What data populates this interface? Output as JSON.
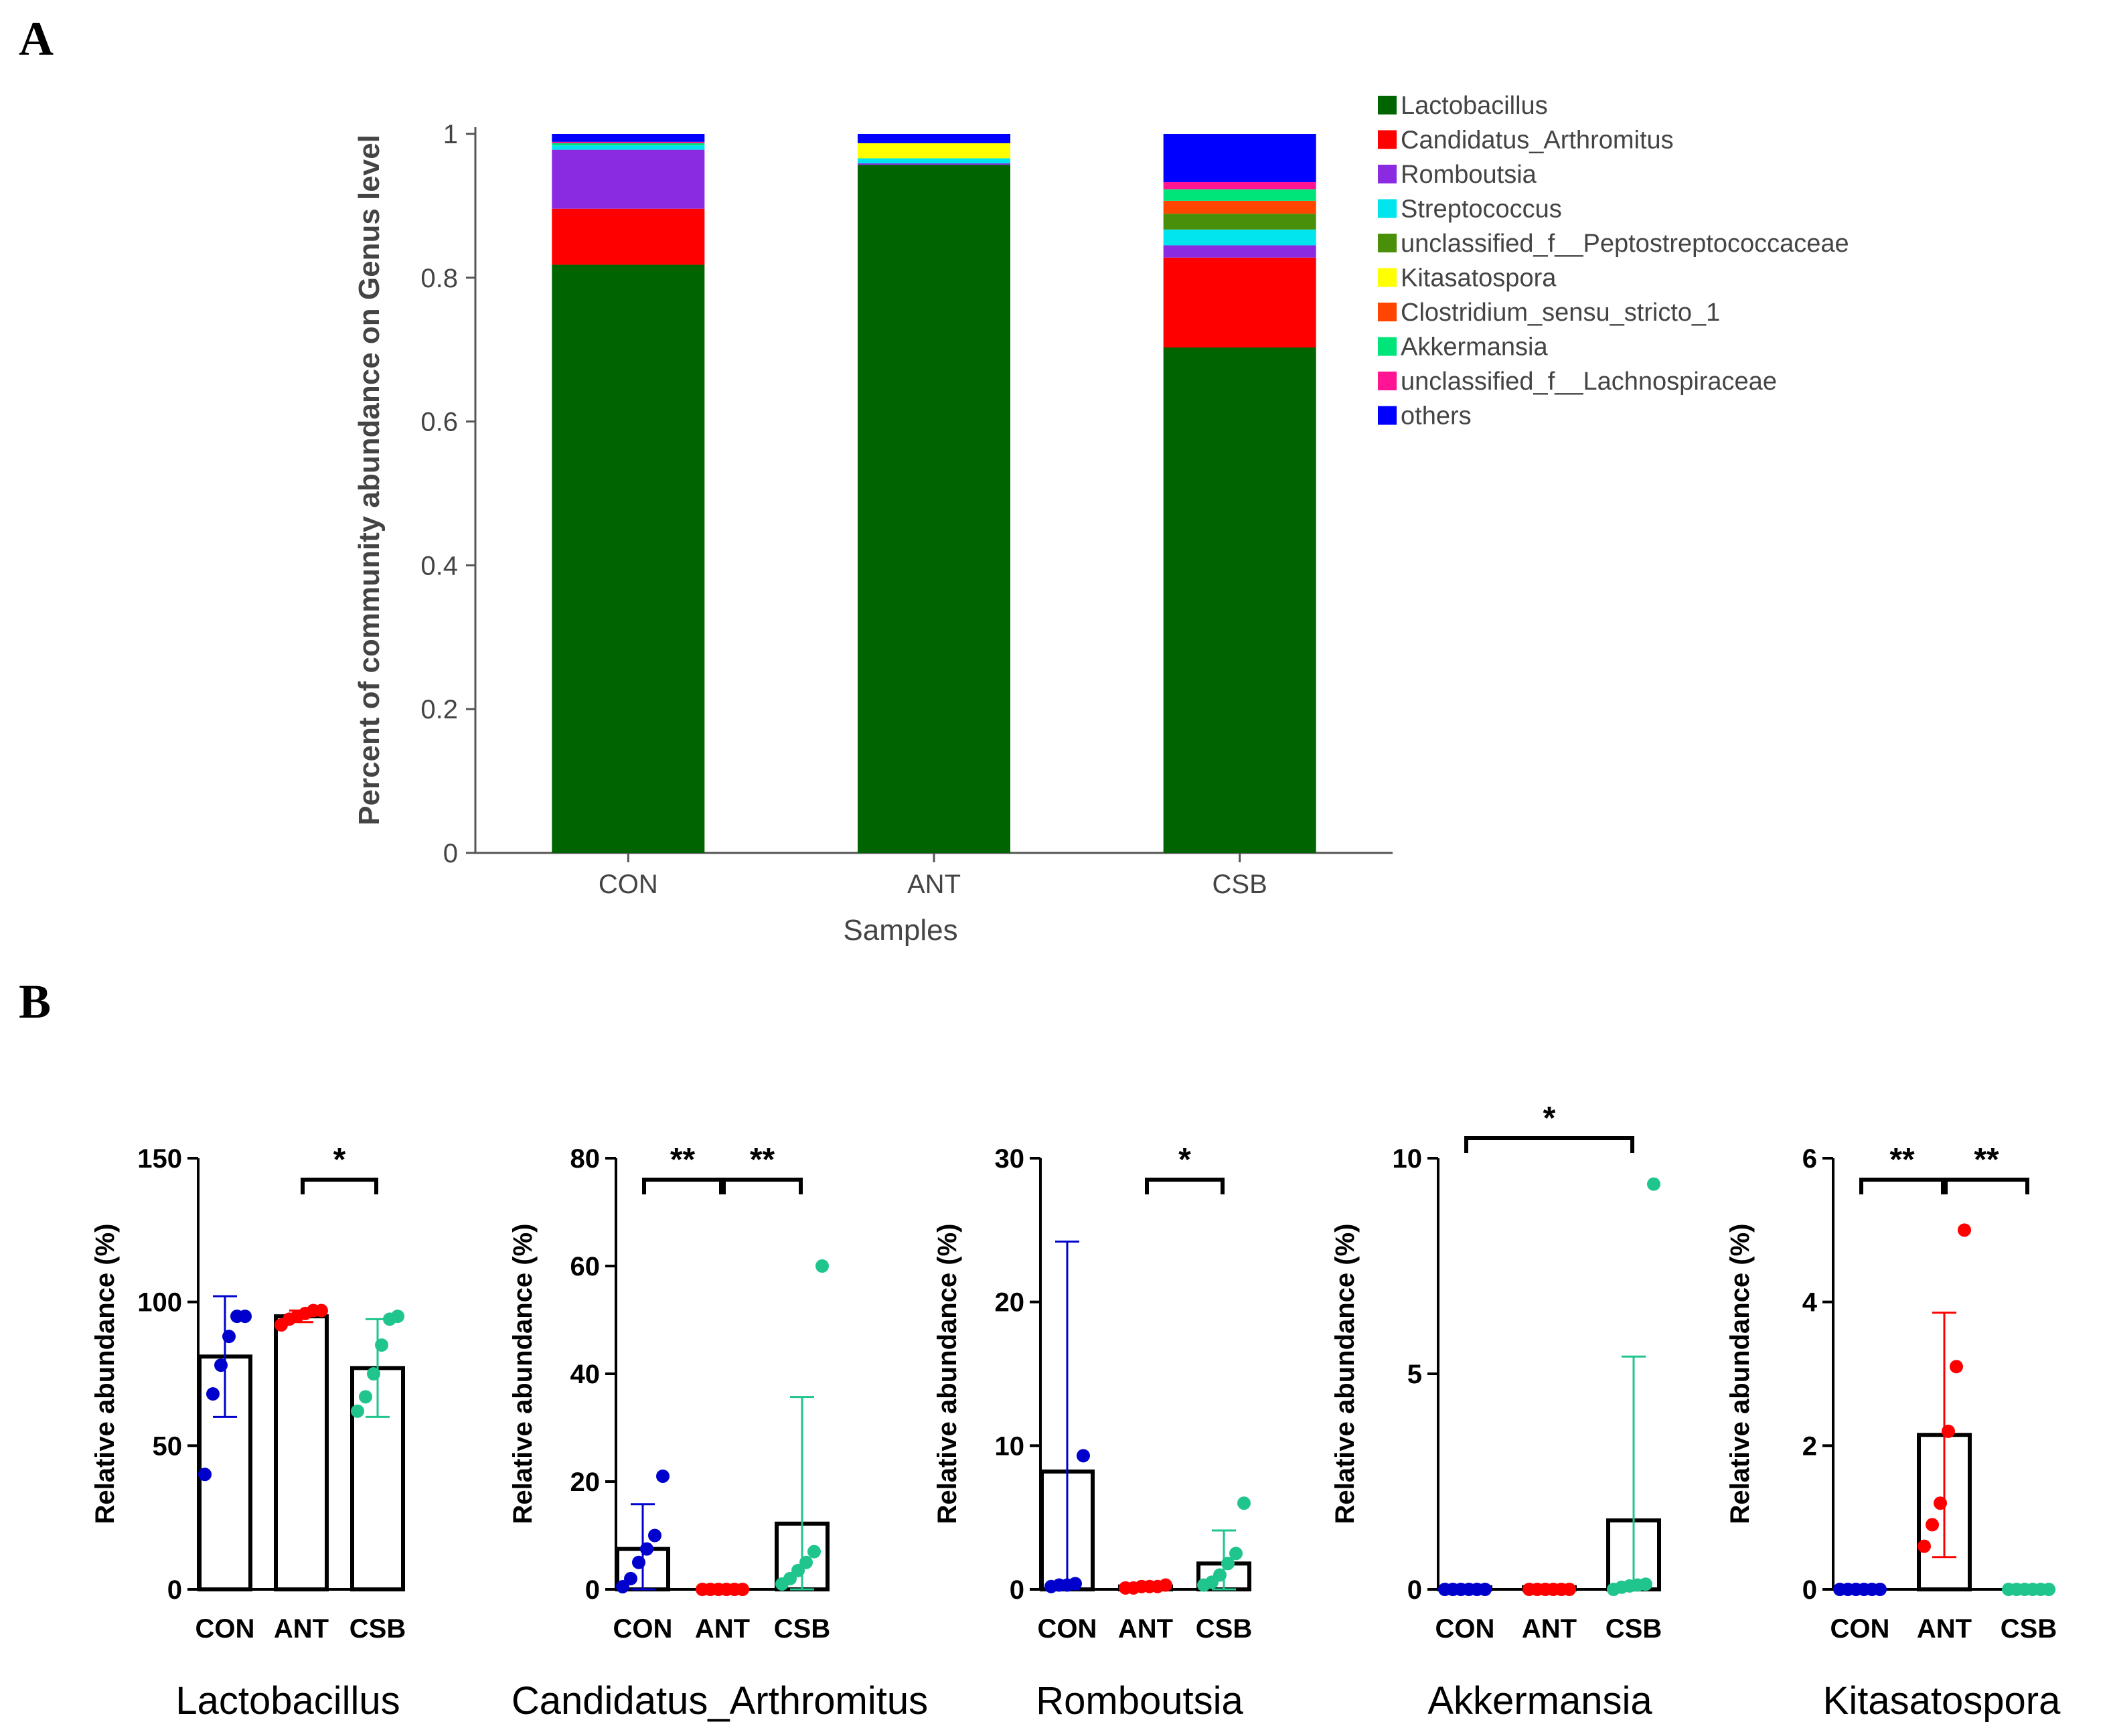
{
  "panel_labels": {
    "a": "A",
    "b": "B"
  },
  "chart_data": [
    {
      "type": "bar",
      "stacked": true,
      "panel": "A",
      "title": "",
      "xlabel": "Samples",
      "ylabel": "Percent of community abundance on Genus level",
      "ylim": [
        0,
        1
      ],
      "yticks": [
        0,
        0.2,
        0.4,
        0.6,
        0.8,
        1
      ],
      "ytick_labels": [
        "0",
        "0.2",
        "0.4",
        "0.6",
        "0.8",
        "1"
      ],
      "categories": [
        "CON",
        "ANT",
        "CSB"
      ],
      "legend_position": "right",
      "series": [
        {
          "name": "Lactobacillus",
          "color": "#006400",
          "values": [
            0.818,
            0.957,
            0.703
          ]
        },
        {
          "name": "Candidatus_Arthromitus",
          "color": "#ff0000",
          "values": [
            0.078,
            0.0,
            0.125
          ]
        },
        {
          "name": "Romboutsia",
          "color": "#8a2be2",
          "values": [
            0.082,
            0.002,
            0.017
          ]
        },
        {
          "name": "Streptococcus",
          "color": "#00e5ee",
          "values": [
            0.006,
            0.007,
            0.022
          ]
        },
        {
          "name": "unclassified_f__Peptostreptococcaceae",
          "color": "#4a8f0a",
          "values": [
            0.0,
            0.0,
            0.022
          ]
        },
        {
          "name": "Kitasatospora",
          "color": "#ffff00",
          "values": [
            0.0,
            0.021,
            0.0
          ]
        },
        {
          "name": "Clostridium_sensu_stricto_1",
          "color": "#ff4500",
          "values": [
            0.0,
            0.0,
            0.018
          ]
        },
        {
          "name": "Akkermansia",
          "color": "#00e57a",
          "values": [
            0.003,
            0.0,
            0.016
          ]
        },
        {
          "name": "unclassified_f__Lachnospiraceae",
          "color": "#ff1493",
          "values": [
            0.002,
            0.0,
            0.01
          ]
        },
        {
          "name": "others",
          "color": "#0000ff",
          "values": [
            0.011,
            0.013,
            0.067
          ]
        }
      ]
    },
    {
      "type": "bar",
      "panel": "B",
      "title": "Lactobacillus",
      "ylabel": "Relative abundance (%)",
      "ylim": [
        0,
        150
      ],
      "yticks": [
        0,
        50,
        100,
        150
      ],
      "categories": [
        "CON",
        "ANT",
        "CSB"
      ],
      "means": [
        81,
        95,
        77
      ],
      "errors": [
        21,
        2,
        17
      ],
      "points": [
        [
          40,
          68,
          78,
          88,
          95,
          95
        ],
        [
          92,
          94,
          95,
          96,
          97,
          97
        ],
        [
          62,
          67,
          75,
          85,
          94,
          95
        ]
      ],
      "significance": [
        {
          "from": 1,
          "to": 2,
          "label": "*"
        }
      ]
    },
    {
      "type": "bar",
      "panel": "B",
      "title": "Candidatus_Arthromitus",
      "ylabel": "Relative abundance (%)",
      "ylim": [
        0,
        80
      ],
      "yticks": [
        0,
        20,
        40,
        60,
        80
      ],
      "categories": [
        "CON",
        "ANT",
        "CSB"
      ],
      "means": [
        7.5,
        0.1,
        12.2
      ],
      "errors": [
        8.3,
        0,
        23.5
      ],
      "points": [
        [
          0.5,
          2,
          5,
          7.5,
          10,
          21
        ],
        [
          0,
          0,
          0,
          0,
          0,
          0
        ],
        [
          1,
          2,
          3.5,
          5,
          7,
          60
        ]
      ],
      "significance": [
        {
          "from": 0,
          "to": 1,
          "label": "**"
        },
        {
          "from": 1,
          "to": 2,
          "label": "**"
        }
      ]
    },
    {
      "type": "bar",
      "panel": "B",
      "title": "Romboutsia",
      "ylabel": "Relative abundance (%)",
      "ylim": [
        0,
        30
      ],
      "yticks": [
        0,
        10,
        20,
        30
      ],
      "categories": [
        "CON",
        "ANT",
        "CSB"
      ],
      "means": [
        8.2,
        0.2,
        1.8
      ],
      "errors": [
        16,
        0,
        2.3
      ],
      "points": [
        [
          0.2,
          0.3,
          0.3,
          0.4,
          9.3
        ],
        [
          0.1,
          0.1,
          0.2,
          0.2,
          0.2,
          0.3
        ],
        [
          0.3,
          0.5,
          1,
          1.8,
          2.5,
          6
        ]
      ],
      "significance": [
        {
          "from": 1,
          "to": 2,
          "label": "*"
        }
      ]
    },
    {
      "type": "bar",
      "panel": "B",
      "title": "Akkermansia",
      "ylabel": "Relative abundance (%)",
      "ylim": [
        0,
        10
      ],
      "yticks": [
        0,
        5,
        10
      ],
      "categories": [
        "CON",
        "ANT",
        "CSB"
      ],
      "means": [
        0.05,
        0.05,
        1.6
      ],
      "errors": [
        0,
        0,
        3.8
      ],
      "points": [
        [
          0,
          0,
          0,
          0,
          0,
          0
        ],
        [
          0,
          0,
          0,
          0,
          0,
          0
        ],
        [
          0,
          0.05,
          0.08,
          0.1,
          0.12,
          9.4
        ]
      ],
      "significance": [
        {
          "from": 0,
          "to": 2,
          "label": "*"
        }
      ]
    },
    {
      "type": "bar",
      "panel": "B",
      "title": "Kitasatospora",
      "ylabel": "Relative abundance (%)",
      "ylim": [
        0,
        6
      ],
      "yticks": [
        0,
        2,
        4,
        6
      ],
      "categories": [
        "CON",
        "ANT",
        "CSB"
      ],
      "means": [
        0,
        2.15,
        0
      ],
      "errors": [
        0,
        1.7,
        0
      ],
      "points": [
        [
          0,
          0,
          0,
          0,
          0,
          0
        ],
        [
          0.6,
          0.9,
          1.2,
          2.2,
          3.1,
          5.0
        ],
        [
          0,
          0,
          0,
          0,
          0,
          0
        ]
      ],
      "significance": [
        {
          "from": 0,
          "to": 1,
          "label": "**"
        },
        {
          "from": 1,
          "to": 2,
          "label": "**"
        }
      ]
    }
  ]
}
